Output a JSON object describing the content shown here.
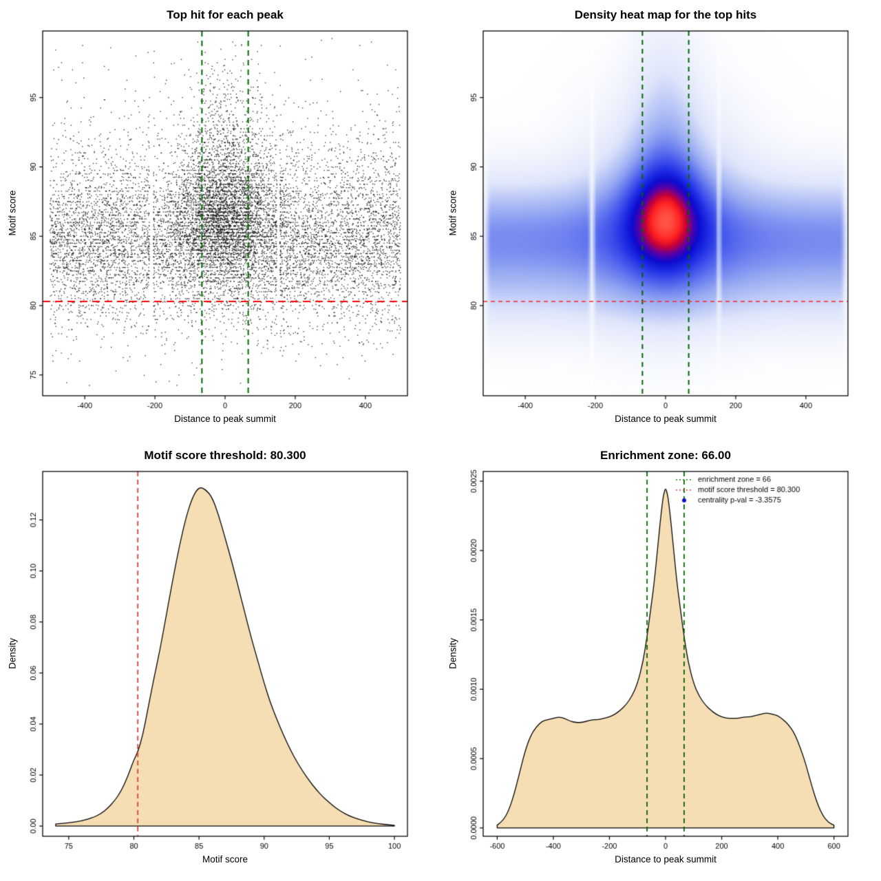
{
  "figure": {
    "background": "#ffffff"
  },
  "chart_data": [
    {
      "type": "scatter",
      "title": "Top hit for each peak",
      "xlabel": "Distance to peak summit",
      "ylabel": "Motif score",
      "xlim": [
        -520,
        520
      ],
      "ylim": [
        73.5,
        99.8
      ],
      "xtick_values": [
        -400,
        -200,
        0,
        200,
        400
      ],
      "xtick_labels": [
        "-400",
        "-200",
        "0",
        "200",
        "400"
      ],
      "ytick_values": [
        75,
        80,
        85,
        90,
        95
      ],
      "ytick_labels": [
        "75",
        "80",
        "85",
        "90",
        "95"
      ],
      "point_color": "#000000",
      "vlines": [
        {
          "x": -66,
          "color": "#006400",
          "width": 2,
          "dash": [
            8,
            6
          ]
        },
        {
          "x": 66,
          "color": "#006400",
          "width": 2,
          "dash": [
            8,
            6
          ]
        }
      ],
      "hlines": [
        {
          "y": 80.3,
          "color": "#ff0000",
          "width": 2,
          "dash": [
            11,
            7
          ]
        }
      ],
      "generator": {
        "seed": 20240613,
        "point_size": 1.3,
        "quantize_frac": 0.4,
        "gaps": [
          {
            "x": -210,
            "half": 5
          },
          {
            "x": 152,
            "half": 4
          }
        ],
        "components": [
          {
            "kind": "ux_gy",
            "n": 5200,
            "x_range": [
              -500,
              500
            ],
            "y_mean": 84.3,
            "y_sd": 2.2,
            "y_clip": [
              74.2,
              99.2
            ]
          },
          {
            "kind": "ux_gy",
            "n": 2600,
            "x_range": [
              -500,
              500
            ],
            "y_mean": 87.6,
            "y_sd": 3.1,
            "y_clip": [
              74.2,
              99.2
            ]
          },
          {
            "kind": "ux_gy",
            "n": 650,
            "x_range": [
              -500,
              500
            ],
            "y_mean": 79.8,
            "y_sd": 1.8,
            "y_clip": [
              74.2,
              99.2
            ]
          },
          {
            "kind": "g_xy",
            "n": 3000,
            "x_mean": 0,
            "x_sd": 70,
            "y_mean": 86.6,
            "y_sd": 2.6,
            "x_clip": [
              -280,
              280
            ],
            "y_clip": [
              75,
              99.5
            ]
          },
          {
            "kind": "g_xy",
            "n": 520,
            "x_mean": 0,
            "x_sd": 58,
            "y_mean": 92.2,
            "y_sd": 3.0,
            "x_clip": [
              -260,
              260
            ],
            "y_clip": [
              80,
              99.5
            ]
          },
          {
            "kind": "u_xy",
            "n": 260,
            "x_range": [
              -500,
              500
            ],
            "y_range": [
              74.2,
              99.2
            ]
          }
        ]
      }
    },
    {
      "type": "heatmap",
      "title": "Density heat map for the top hits",
      "xlabel": "Distance to peak summit",
      "ylabel": "Motif score",
      "xlim": [
        -520,
        520
      ],
      "ylim": [
        73.5,
        99.8
      ],
      "xtick_values": [
        -400,
        -200,
        0,
        200,
        400
      ],
      "xtick_labels": [
        "-400",
        "-200",
        "0",
        "200",
        "400"
      ],
      "ytick_values": [
        80,
        85,
        90,
        95
      ],
      "ytick_labels": [
        "80",
        "85",
        "90",
        "95"
      ],
      "density_model": {
        "gamma": 0.7,
        "components": [
          {
            "type": "band",
            "w": 0.6,
            "y_mean": 84.8,
            "y_sd": 2.6
          },
          {
            "type": "band",
            "w": 0.12,
            "y_mean": 80.6,
            "y_sd": 1.9
          },
          {
            "type": "blob",
            "w": 1.0,
            "x_mean": 0,
            "x_sd": 70,
            "y_mean": 86.4,
            "y_sd": 2.4
          },
          {
            "type": "blob",
            "w": 0.45,
            "x_mean": 0,
            "x_sd": 140,
            "y_mean": 86.6,
            "y_sd": 4.4
          },
          {
            "type": "blob",
            "w": 0.3,
            "x_mean": 0,
            "x_sd": 62,
            "y_mean": 91.0,
            "y_sd": 5.0
          }
        ],
        "gaps": [
          {
            "x": -210,
            "sd": 5,
            "depth": 0.85
          },
          {
            "x": 152,
            "sd": 4,
            "depth": 0.75
          }
        ]
      },
      "colormap": [
        [
          0.0,
          "#ffffff"
        ],
        [
          0.18,
          "#dfe6fb"
        ],
        [
          0.35,
          "#97a9f2"
        ],
        [
          0.5,
          "#5064ee"
        ],
        [
          0.62,
          "#2030e6"
        ],
        [
          0.72,
          "#0b0bd0"
        ],
        [
          0.8,
          "#5a00a8"
        ],
        [
          0.87,
          "#c4003a"
        ],
        [
          0.93,
          "#ff2020"
        ],
        [
          1.0,
          "#ff5548"
        ]
      ],
      "vlines": [
        {
          "x": -66,
          "color": "#006400",
          "width": 2,
          "dash": [
            7,
            6
          ]
        },
        {
          "x": 66,
          "color": "#006400",
          "width": 2,
          "dash": [
            7,
            6
          ]
        }
      ],
      "hlines": [
        {
          "y": 80.3,
          "color": "#ff2222",
          "width": 1.5,
          "dash": [
            6,
            5
          ]
        }
      ]
    },
    {
      "type": "density",
      "title": "Motif score threshold: 80.300",
      "xlabel": "Motif score",
      "ylabel": "Density",
      "xlim": [
        73,
        101
      ],
      "ylim": [
        -0.004,
        0.139
      ],
      "xtick_values": [
        75,
        80,
        85,
        90,
        95,
        100
      ],
      "xtick_labels": [
        "75",
        "80",
        "85",
        "90",
        "95",
        "100"
      ],
      "ytick_values": [
        0,
        0.02,
        0.04,
        0.06,
        0.08,
        0.1,
        0.12
      ],
      "ytick_labels": [
        "0.00",
        "0.02",
        "0.04",
        "0.06",
        "0.08",
        "0.10",
        "0.12"
      ],
      "fill_color": "#f5deb3",
      "line_color": "#000000",
      "vlines": [
        {
          "x": 80.3,
          "color": "#e03c3c",
          "width": 1.8,
          "dash": [
            7,
            5
          ]
        }
      ],
      "curve": {
        "x": [
          74,
          75,
          76,
          77,
          77.5,
          78,
          78.5,
          79,
          79.5,
          80,
          80.3,
          80.7,
          81,
          81.5,
          82,
          82.5,
          83,
          83.5,
          84,
          84.5,
          85,
          85.5,
          86,
          86.5,
          87,
          87.5,
          88,
          88.5,
          89,
          89.5,
          90,
          90.5,
          91,
          91.5,
          92,
          92.5,
          93,
          93.5,
          94,
          94.5,
          95,
          95.5,
          96,
          96.5,
          97,
          97.5,
          98,
          98.5,
          99,
          99.5,
          100
        ],
        "y": [
          0.0008,
          0.0013,
          0.002,
          0.0036,
          0.005,
          0.007,
          0.0098,
          0.0135,
          0.019,
          0.026,
          0.029,
          0.036,
          0.044,
          0.057,
          0.069,
          0.083,
          0.097,
          0.11,
          0.121,
          0.129,
          0.133,
          0.132,
          0.129,
          0.122,
          0.113,
          0.104,
          0.094,
          0.084,
          0.074,
          0.065,
          0.056,
          0.048,
          0.0415,
          0.0355,
          0.03,
          0.0253,
          0.0212,
          0.0175,
          0.0143,
          0.0115,
          0.0092,
          0.0071,
          0.0054,
          0.0041,
          0.0031,
          0.0023,
          0.0016,
          0.0011,
          0.0008,
          0.0005,
          0.0003
        ]
      }
    },
    {
      "type": "density",
      "title": "Enrichment zone: 66.00",
      "xlabel": "Distance to peak summit",
      "ylabel": "Density",
      "xlim": [
        -650,
        650
      ],
      "ylim": [
        -6e-05,
        0.00257
      ],
      "xtick_values": [
        -600,
        -400,
        -200,
        0,
        200,
        400,
        600
      ],
      "xtick_labels": [
        "-600",
        "-400",
        "-200",
        "0",
        "200",
        "400",
        "600"
      ],
      "ytick_values": [
        0,
        0.0005,
        0.001,
        0.0015,
        0.002,
        0.0025
      ],
      "ytick_labels": [
        "0.0000",
        "0.0005",
        "0.0010",
        "0.0015",
        "0.0020",
        "0.0025"
      ],
      "fill_color": "#f5deb3",
      "line_color": "#000000",
      "vlines": [
        {
          "x": -66,
          "color": "#006400",
          "width": 1.8,
          "dash": [
            7,
            5
          ]
        },
        {
          "x": 66,
          "color": "#006400",
          "width": 1.8,
          "dash": [
            7,
            5
          ]
        }
      ],
      "legend": [
        {
          "sample": "line",
          "dash": [
            2,
            3
          ],
          "color": "#008000",
          "label": "enrichment zone = 66"
        },
        {
          "sample": "line",
          "dash": [
            2,
            3
          ],
          "color": "#e03c3c",
          "label": "motif score threshold = 80.300"
        },
        {
          "sample": "point",
          "color": "#0f0fcf",
          "label": "centrality p-val = -3.3575"
        }
      ],
      "curve": {
        "x": [
          -600,
          -580,
          -560,
          -540,
          -520,
          -500,
          -480,
          -460,
          -440,
          -420,
          -400,
          -380,
          -360,
          -340,
          -320,
          -300,
          -280,
          -260,
          -240,
          -220,
          -200,
          -180,
          -160,
          -140,
          -120,
          -100,
          -80,
          -66,
          -50,
          -40,
          -30,
          -20,
          -10,
          -5,
          0,
          5,
          10,
          20,
          30,
          40,
          50,
          66,
          80,
          100,
          120,
          140,
          160,
          180,
          200,
          220,
          240,
          260,
          280,
          300,
          320,
          340,
          360,
          380,
          400,
          420,
          440,
          460,
          480,
          500,
          520,
          540,
          560,
          580,
          600
        ],
        "y": [
          2e-05,
          5e-05,
          0.00012,
          0.00024,
          0.0004,
          0.00056,
          0.00067,
          0.00073,
          0.00077,
          0.00078,
          0.00079,
          0.0008,
          0.00079,
          0.00077,
          0.00076,
          0.00076,
          0.00077,
          0.00078,
          0.00078,
          0.00079,
          0.0008,
          0.00082,
          0.00085,
          0.00089,
          0.00095,
          0.00104,
          0.0012,
          0.00138,
          0.00162,
          0.00178,
          0.00198,
          0.00219,
          0.00237,
          0.00242,
          0.00245,
          0.00242,
          0.00237,
          0.00219,
          0.00198,
          0.00178,
          0.00162,
          0.00138,
          0.0012,
          0.00104,
          0.00095,
          0.00089,
          0.00085,
          0.00082,
          0.0008,
          0.00079,
          0.00079,
          0.00079,
          0.0008,
          0.0008,
          0.00081,
          0.00082,
          0.00083,
          0.00082,
          0.00081,
          0.00078,
          0.00074,
          0.00068,
          0.00058,
          0.00046,
          0.00031,
          0.00018,
          9e-05,
          4e-05,
          2e-05
        ]
      }
    }
  ]
}
